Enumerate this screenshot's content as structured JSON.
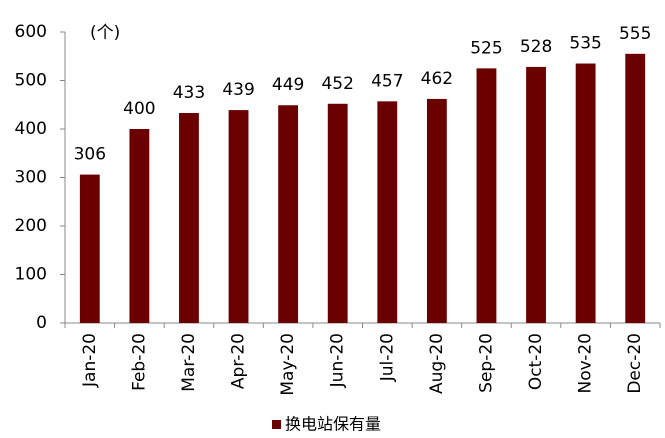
{
  "chart_data": {
    "type": "bar",
    "annotation": "(个)",
    "categories": [
      "Jan-20",
      "Feb-20",
      "Mar-20",
      "Apr-20",
      "May-20",
      "Jun-20",
      "Jul-20",
      "Aug-20",
      "Sep-20",
      "Oct-20",
      "Nov-20",
      "Dec-20"
    ],
    "series": [
      {
        "name": "换电站保有量",
        "color": "#6b0000",
        "values": [
          306,
          400,
          433,
          439,
          449,
          452,
          457,
          462,
          525,
          528,
          535,
          555
        ]
      }
    ],
    "ylim": [
      0,
      600
    ],
    "yticks": [
      0,
      100,
      200,
      300,
      400,
      500,
      600
    ],
    "grid": false,
    "legend": "bottom",
    "data_labels": true
  }
}
